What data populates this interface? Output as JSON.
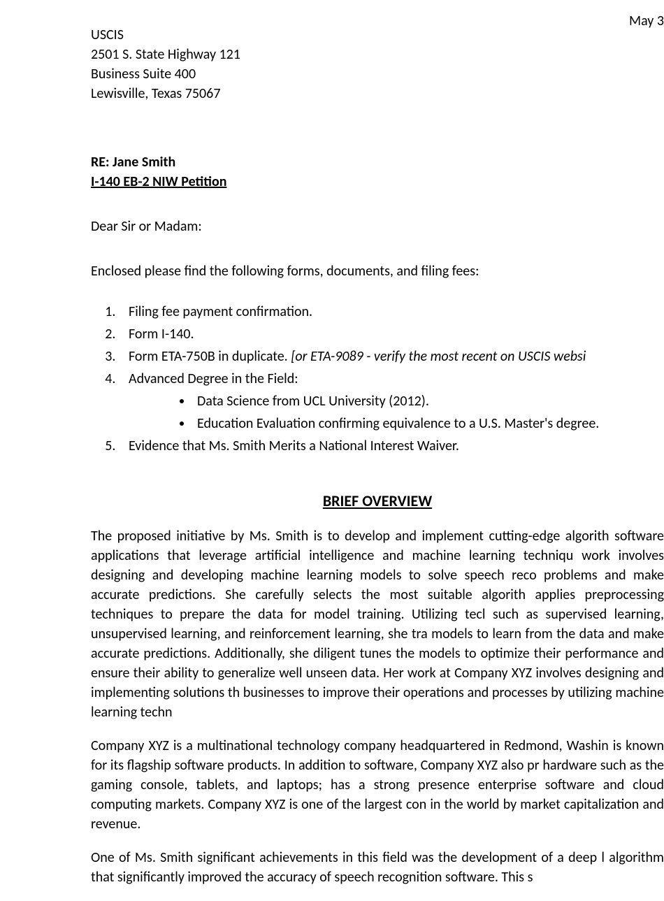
{
  "date": "May 3",
  "address": {
    "line1": "USCIS",
    "line2": "2501 S. State Highway 121",
    "line3": "Business Suite 400",
    "line4": "Lewisville, Texas 75067"
  },
  "re": {
    "name": "RE: Jane Smith",
    "petition": "I-140 EB-2 NIW Petition"
  },
  "salutation": "Dear Sir or Madam:",
  "intro": "Enclosed please find the following forms, documents, and filing fees:",
  "enclosures": {
    "item1": "Filing fee payment confirmation.",
    "item2": "Form I-140.",
    "item3_prefix": "Form ETA-750B in duplicate. ",
    "item3_italic": "[or ETA-9089 - verify the most recent on USCIS websi",
    "item4": "Advanced Degree in the Field:",
    "item4_sub1": "Data Science from UCL University (2012).",
    "item4_sub2": "Education Evaluation confirming equivalence to a U.S. Master's degree.",
    "item5": "Evidence that Ms. Smith Merits a National Interest Waiver."
  },
  "overview_heading": "BRIEF OVERVIEW",
  "para1": "The proposed initiative by Ms. Smith is to develop and implement cutting-edge algorith software applications that leverage artificial intelligence and machine learning techniqu work involves designing and developing machine learning models to solve speech reco problems and make accurate predictions. She carefully selects the most suitable algorith applies preprocessing techniques to prepare the data for model training. Utilizing tecl such as supervised learning, unsupervised learning, and reinforcement learning, she tra models to learn from the data and make accurate predictions. Additionally, she diligent tunes the models to optimize their performance and ensure their ability to generalize well unseen data. Her work at Company XYZ involves designing and implementing solutions th businesses to improve their operations and processes by utilizing machine learning techn",
  "para2": "Company XYZ is a multinational technology company headquartered in Redmond, Washin is known for its flagship software products. In addition to software, Company XYZ also pr hardware such as the gaming console, tablets, and laptops; has a strong presence enterprise software and cloud computing markets. Company XYZ is one of the largest con in the world by market capitalization and revenue.",
  "para3": "One of Ms. Smith significant achievements in this field was the development of a deep l algorithm that significantly improved the accuracy of speech recognition software. This s",
  "colors": {
    "text": "#000000",
    "background": "#ffffff"
  },
  "fonts": {
    "body_size": 20,
    "heading_size": 22,
    "family": "Calibri"
  }
}
